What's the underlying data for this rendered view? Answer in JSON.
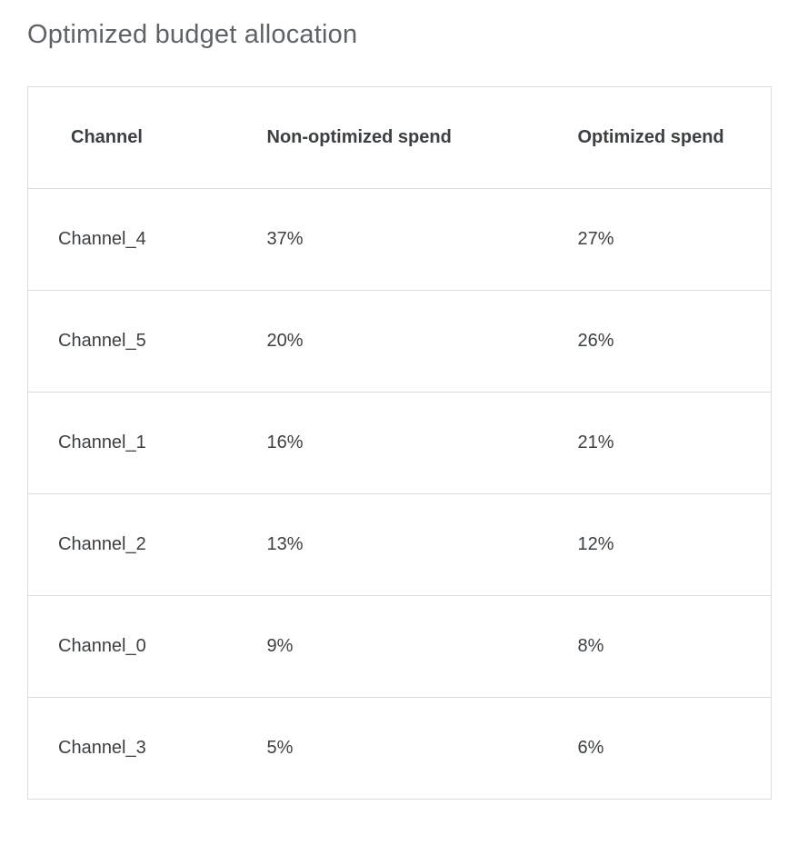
{
  "page": {
    "title": "Optimized budget allocation"
  },
  "chart_data": {
    "type": "table",
    "title": "Optimized budget allocation",
    "columns": [
      "Channel",
      "Non-optimized spend",
      "Optimized spend"
    ],
    "rows": [
      {
        "channel": "Channel_4",
        "non_optimized": "37%",
        "optimized": "27%"
      },
      {
        "channel": "Channel_5",
        "non_optimized": "20%",
        "optimized": "26%"
      },
      {
        "channel": "Channel_1",
        "non_optimized": "16%",
        "optimized": "21%"
      },
      {
        "channel": "Channel_2",
        "non_optimized": "13%",
        "optimized": "12%"
      },
      {
        "channel": "Channel_0",
        "non_optimized": "9%",
        "optimized": "8%"
      },
      {
        "channel": "Channel_3",
        "non_optimized": "5%",
        "optimized": "6%"
      }
    ]
  }
}
